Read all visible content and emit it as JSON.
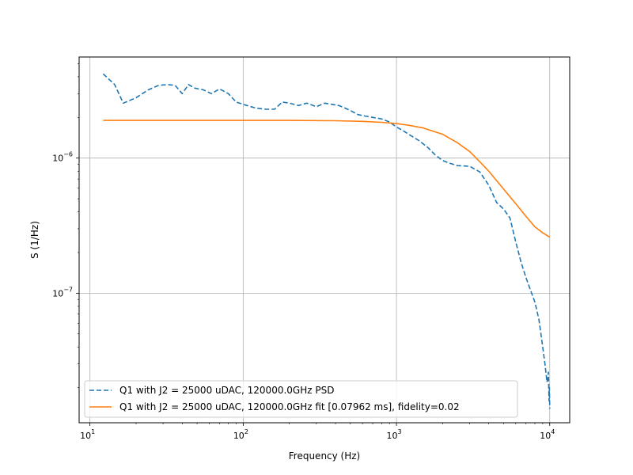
{
  "chart_data": {
    "type": "line",
    "xlabel": "Frequency (Hz)",
    "ylabel": "S (1/Hz)",
    "x_scale": "log",
    "y_scale": "log",
    "xlim": [
      8.5,
      13500
    ],
    "ylim": [
      1.1e-08,
      5.6e-06
    ],
    "grid": true,
    "legend_position": "lower-left",
    "x_ticks": [
      {
        "value": 10,
        "base": "10",
        "exp": "1"
      },
      {
        "value": 100,
        "base": "10",
        "exp": "2"
      },
      {
        "value": 1000,
        "base": "10",
        "exp": "3"
      },
      {
        "value": 10000,
        "base": "10",
        "exp": "4"
      }
    ],
    "y_ticks": [
      {
        "value": 1e-06,
        "base": "10",
        "exp": "−6"
      },
      {
        "value": 1e-07,
        "base": "10",
        "exp": "−7"
      }
    ],
    "series": [
      {
        "name": "Q1 with J2 = 25000 uDAC, 120000.0GHz PSD",
        "color": "#1f77b4",
        "style": "dashed",
        "x": [
          12.2,
          14.5,
          16.5,
          20,
          24,
          28,
          32,
          36,
          40,
          44,
          48,
          55,
          62,
          70,
          80,
          90,
          100,
          120,
          140,
          160,
          180,
          200,
          230,
          260,
          300,
          340,
          380,
          420,
          460,
          500,
          560,
          620,
          700,
          800,
          900,
          1000,
          1100,
          1200,
          1400,
          1600,
          1800,
          2000,
          2200,
          2500,
          3000,
          3500,
          4000,
          4500,
          5000,
          5500,
          6000,
          6500,
          7000,
          7500,
          8000,
          8500,
          9000,
          9300,
          9600,
          9800,
          9900,
          9950,
          10000
        ],
        "y": [
          4.2e-06,
          3.5e-06,
          2.55e-06,
          2.8e-06,
          3.2e-06,
          3.45e-06,
          3.5e-06,
          3.45e-06,
          3e-06,
          3.5e-06,
          3.3e-06,
          3.2e-06,
          3e-06,
          3.25e-06,
          3e-06,
          2.6e-06,
          2.5e-06,
          2.35e-06,
          2.3e-06,
          2.3e-06,
          2.6e-06,
          2.55e-06,
          2.45e-06,
          2.55e-06,
          2.4e-06,
          2.55e-06,
          2.5e-06,
          2.45e-06,
          2.35e-06,
          2.25e-06,
          2.1e-06,
          2.05e-06,
          2e-06,
          1.95e-06,
          1.85e-06,
          1.7e-06,
          1.6e-06,
          1.5e-06,
          1.35e-06,
          1.2e-06,
          1.05e-06,
          9.6e-07,
          9.2e-07,
          8.8e-07,
          8.7e-07,
          7.9e-07,
          6.3e-07,
          4.7e-07,
          4.2e-07,
          3.6e-07,
          2.4e-07,
          1.7e-07,
          1.3e-07,
          1.05e-07,
          8.6e-08,
          6.4e-08,
          4e-08,
          3e-08,
          2.2e-08,
          2.6e-08,
          1.6e-08,
          2e-08,
          1.4e-08
        ]
      },
      {
        "name": "Q1 with J2 = 25000 uDAC, 120000.0GHz fit [0.07962 ms], fidelity=0.02",
        "color": "#ff7f0e",
        "style": "solid",
        "x": [
          12.2,
          20,
          50,
          100,
          200,
          400,
          600,
          800,
          1000,
          1200,
          1500,
          2000,
          2500,
          3000,
          3500,
          4000,
          5000,
          6000,
          7000,
          8000,
          9000,
          10000
        ],
        "y": [
          1.9e-06,
          1.9e-06,
          1.9e-06,
          1.9e-06,
          1.9e-06,
          1.89e-06,
          1.87e-06,
          1.84e-06,
          1.8e-06,
          1.75e-06,
          1.67e-06,
          1.5e-06,
          1.3e-06,
          1.12e-06,
          9.4e-07,
          8e-07,
          5.9e-07,
          4.6e-07,
          3.7e-07,
          3.1e-07,
          2.8e-07,
          2.6e-07
        ]
      }
    ]
  }
}
